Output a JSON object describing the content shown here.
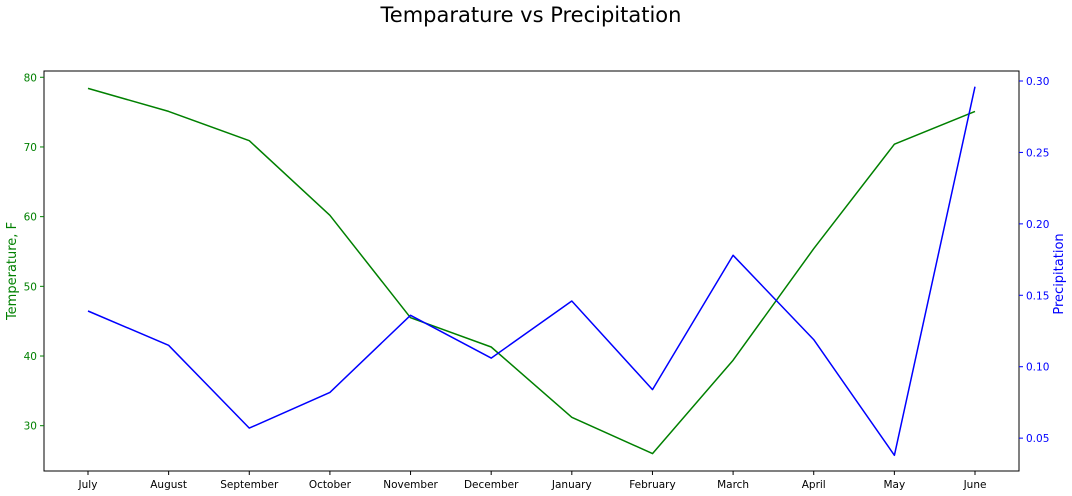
{
  "chart_data": {
    "type": "line",
    "title": "Temparature vs Precipitation",
    "categories": [
      "July",
      "August",
      "September",
      "October",
      "November",
      "December",
      "January",
      "February",
      "March",
      "April",
      "May",
      "June"
    ],
    "y_left": {
      "label": "Temperature, F",
      "color": "#008000",
      "ticks": [
        30,
        40,
        50,
        60,
        70,
        80
      ],
      "tick_labels": [
        "30",
        "40",
        "50",
        "60",
        "70",
        "80"
      ],
      "range": [
        23.5,
        80.9
      ]
    },
    "y_right": {
      "label": "Precipitation",
      "color": "#0000ff",
      "ticks": [
        0.05,
        0.1,
        0.15,
        0.2,
        0.25,
        0.3
      ],
      "tick_labels": [
        "0.05",
        "0.10",
        "0.15",
        "0.20",
        "0.25",
        "0.30"
      ],
      "range": [
        0.027,
        0.307
      ]
    },
    "series": [
      {
        "axis": "left",
        "color": "#008000",
        "values": [
          78.4,
          75.1,
          70.9,
          60.2,
          45.5,
          41.3,
          31.2,
          26.0,
          39.4,
          55.4,
          70.4,
          75.1
        ]
      },
      {
        "axis": "right",
        "color": "#0000ff",
        "values": [
          0.139,
          0.115,
          0.057,
          0.082,
          0.136,
          0.106,
          0.146,
          0.084,
          0.178,
          0.119,
          0.038,
          0.296
        ]
      }
    ],
    "grid": false,
    "legend": "none"
  }
}
